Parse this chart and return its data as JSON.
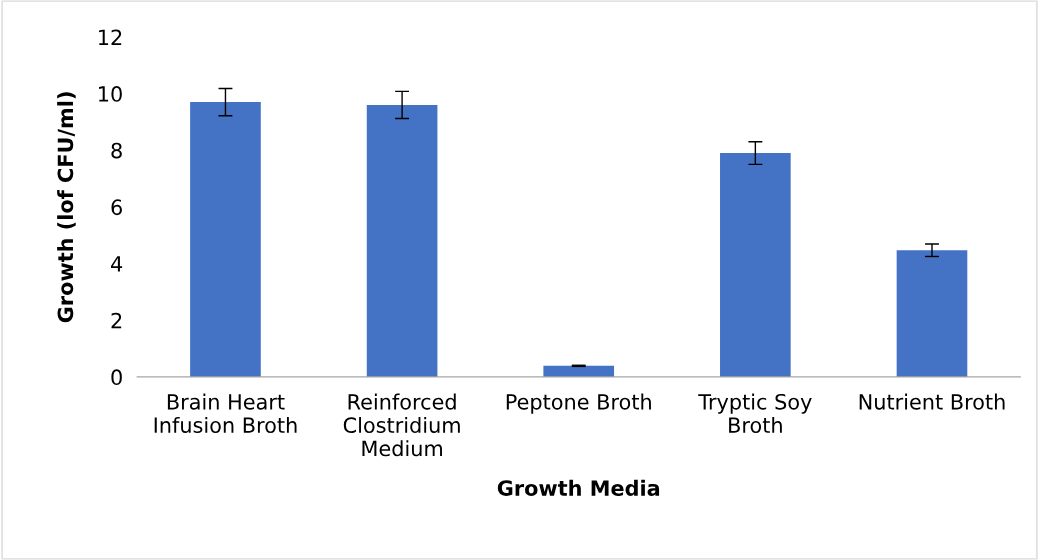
{
  "chart_data": {
    "type": "bar",
    "xlabel": "Growth Media",
    "ylabel": "Growth (lof CFU/ml)",
    "categories": [
      "Brain Heart\nInfusion Broth",
      "Reinforced\nClostridium\nMedium",
      "Peptone Broth",
      "Tryptic Soy\nBroth",
      "Nutrient Broth"
    ],
    "values": [
      9.7,
      9.6,
      0.39,
      7.9,
      4.47
    ],
    "errors": [
      0.48,
      0.48,
      0.02,
      0.4,
      0.22
    ],
    "color": "#4472c4",
    "ylim": [
      0,
      12
    ],
    "yticks": [
      0,
      2,
      4,
      6,
      8,
      10,
      12
    ],
    "grid": false
  }
}
